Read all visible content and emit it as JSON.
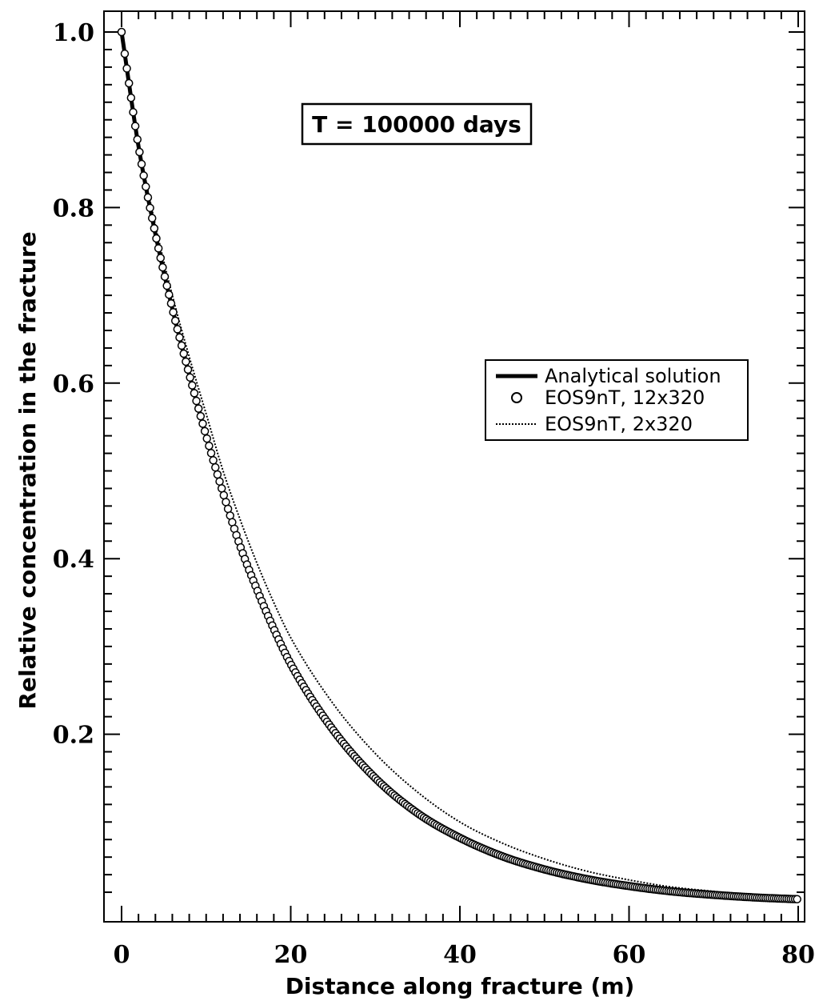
{
  "chart_data": {
    "type": "line",
    "title": "",
    "annotation": "T = 100000 days",
    "xlabel": "Distance along fracture (m)",
    "ylabel": "Relative concentration in the fracture",
    "xlim": [
      0,
      80
    ],
    "ylim": [
      0,
      1.0
    ],
    "x_ticks": [
      0,
      20,
      40,
      60,
      80
    ],
    "x_tick_labels": [
      "0",
      "20",
      "40",
      "60",
      "80"
    ],
    "y_ticks": [
      0.2,
      0.4,
      0.6,
      0.8,
      1.0
    ],
    "y_tick_labels": [
      "0.2",
      "0.4",
      "0.6",
      "0.8",
      "1.0"
    ],
    "grid": false,
    "legend_position": "right",
    "series": [
      {
        "name": "Analytical solution",
        "style": "thick-solid",
        "color": "#000000",
        "x": [
          0,
          2,
          4,
          6,
          8,
          10,
          12,
          14,
          16,
          18,
          20,
          25,
          30,
          35,
          40,
          45,
          50,
          55,
          60,
          65,
          70,
          75,
          80
        ],
        "y": [
          1.0,
          0.87,
          0.77,
          0.685,
          0.61,
          0.54,
          0.475,
          0.415,
          0.365,
          0.32,
          0.28,
          0.205,
          0.15,
          0.11,
          0.082,
          0.061,
          0.046,
          0.035,
          0.027,
          0.021,
          0.017,
          0.014,
          0.012
        ]
      },
      {
        "name": "EOS9nT, 12x320",
        "style": "open-circles",
        "color": "#000000",
        "x": [
          0,
          2,
          4,
          6,
          8,
          10,
          12,
          14,
          16,
          18,
          20,
          25,
          30,
          35,
          40,
          45,
          50,
          55,
          60,
          65,
          70,
          75,
          80
        ],
        "y": [
          1.0,
          0.87,
          0.77,
          0.685,
          0.61,
          0.54,
          0.475,
          0.415,
          0.365,
          0.32,
          0.28,
          0.205,
          0.15,
          0.11,
          0.082,
          0.061,
          0.046,
          0.035,
          0.027,
          0.021,
          0.017,
          0.014,
          0.012
        ]
      },
      {
        "name": "EOS9nT, 2x320",
        "style": "dotted",
        "color": "#000000",
        "x": [
          0,
          2,
          4,
          6,
          8,
          10,
          12,
          14,
          16,
          18,
          20,
          25,
          30,
          35,
          40,
          45,
          50,
          55,
          60,
          65,
          70,
          75,
          80
        ],
        "y": [
          1.0,
          0.875,
          0.78,
          0.7,
          0.63,
          0.565,
          0.5,
          0.445,
          0.395,
          0.35,
          0.31,
          0.235,
          0.178,
          0.134,
          0.1,
          0.076,
          0.058,
          0.044,
          0.034,
          0.026,
          0.021,
          0.016,
          0.013
        ]
      }
    ]
  }
}
